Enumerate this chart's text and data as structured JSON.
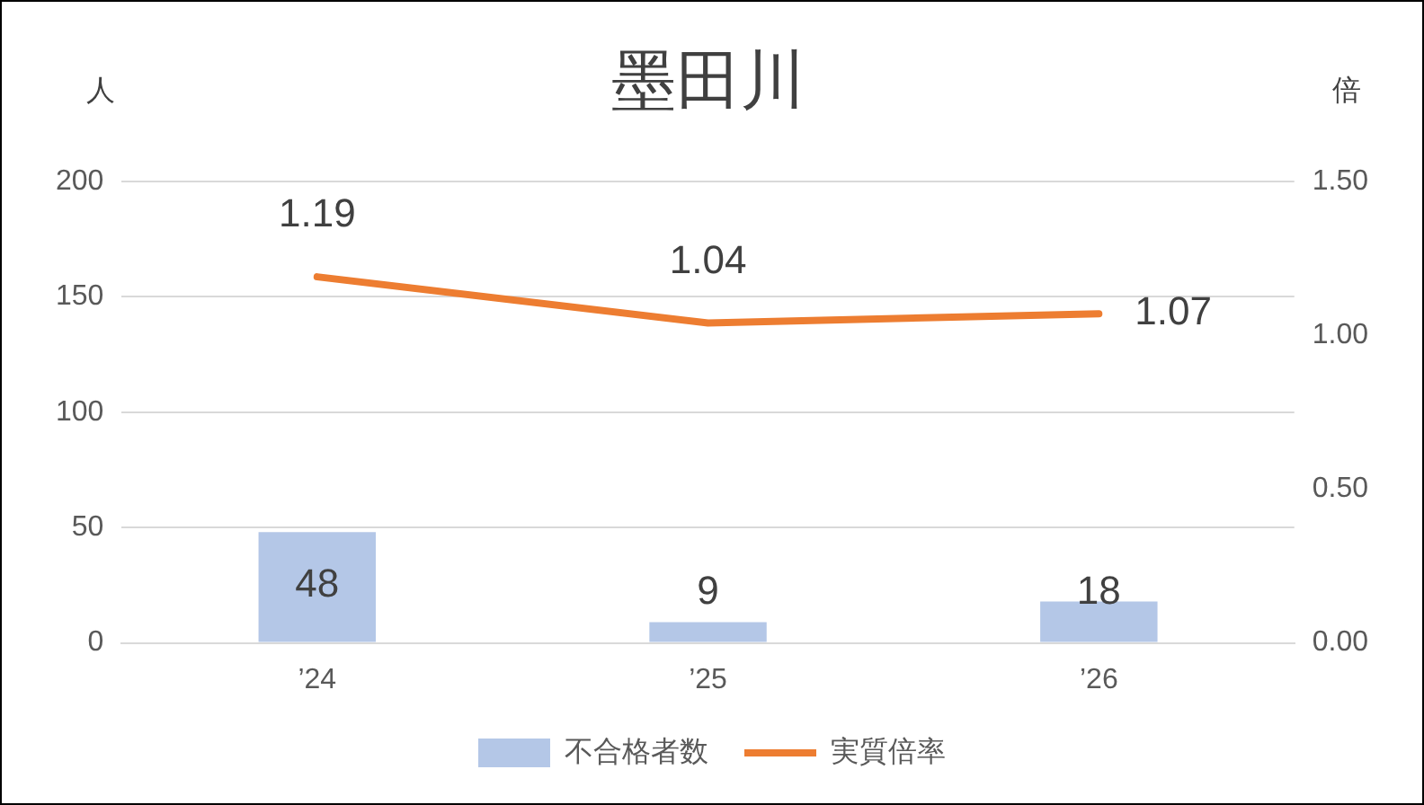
{
  "chart_data": {
    "type": "bar",
    "title": "墨田川",
    "ylabel": "人",
    "y2label": "倍",
    "categories": [
      "’24",
      "’25",
      "’26"
    ],
    "series": [
      {
        "name": "不合格者数",
        "color": "#b4c7e7",
        "values": [
          48,
          9,
          18
        ]
      },
      {
        "name": "実質倍率",
        "type": "line",
        "axis": "y2",
        "color": "#ed7d31",
        "values": [
          1.19,
          1.04,
          1.07
        ],
        "marker": "none"
      }
    ],
    "ylim": [
      0,
      200
    ],
    "yticks": [
      0,
      50,
      100,
      150,
      200
    ],
    "y2lim": [
      0,
      1.5
    ],
    "y2ticks": [
      {
        "value": 0,
        "label": "0.00"
      },
      {
        "value": 0.5,
        "label": "0.50"
      },
      {
        "value": 1,
        "label": "1.00"
      },
      {
        "value": 1.5,
        "label": "1.50"
      }
    ],
    "grid": "y",
    "legend": "bottom",
    "data_labels": true
  }
}
